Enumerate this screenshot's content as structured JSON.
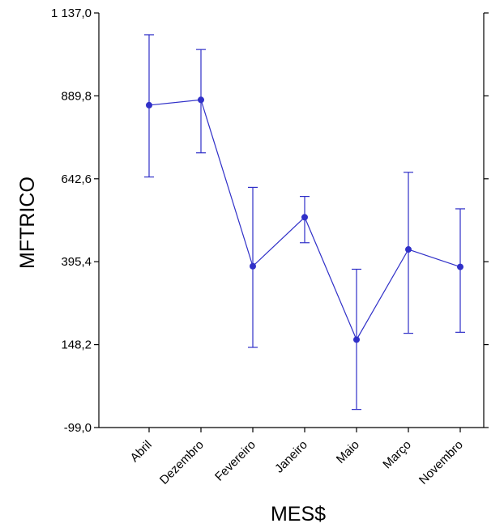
{
  "chart_data": {
    "type": "line",
    "title": "",
    "xlabel": "MES$",
    "ylabel": "MFTRICO",
    "categories": [
      "Abril",
      "Dezembro",
      "Fevereiro",
      "Janeiro",
      "Maio",
      "Março",
      "Novembro"
    ],
    "y_ticks": [
      -99.0,
      148.2,
      395.4,
      642.6,
      889.8,
      1137.0
    ],
    "y_tick_labels": [
      "-99,0",
      "148,2",
      "395,4",
      "642,6",
      "889,8",
      "1 137,0"
    ],
    "ylim": [
      -99.0,
      1137.0
    ],
    "grid": false,
    "legend": "none",
    "series": [
      {
        "values": [
          862,
          878,
          382,
          528,
          163,
          432,
          380
        ],
        "error_low": [
          648,
          720,
          140,
          452,
          -45,
          182,
          185
        ],
        "error_high": [
          1072,
          1028,
          617,
          590,
          373,
          662,
          553
        ]
      }
    ],
    "colors": {
      "series": "#3030c8",
      "axis": "#000000"
    }
  }
}
